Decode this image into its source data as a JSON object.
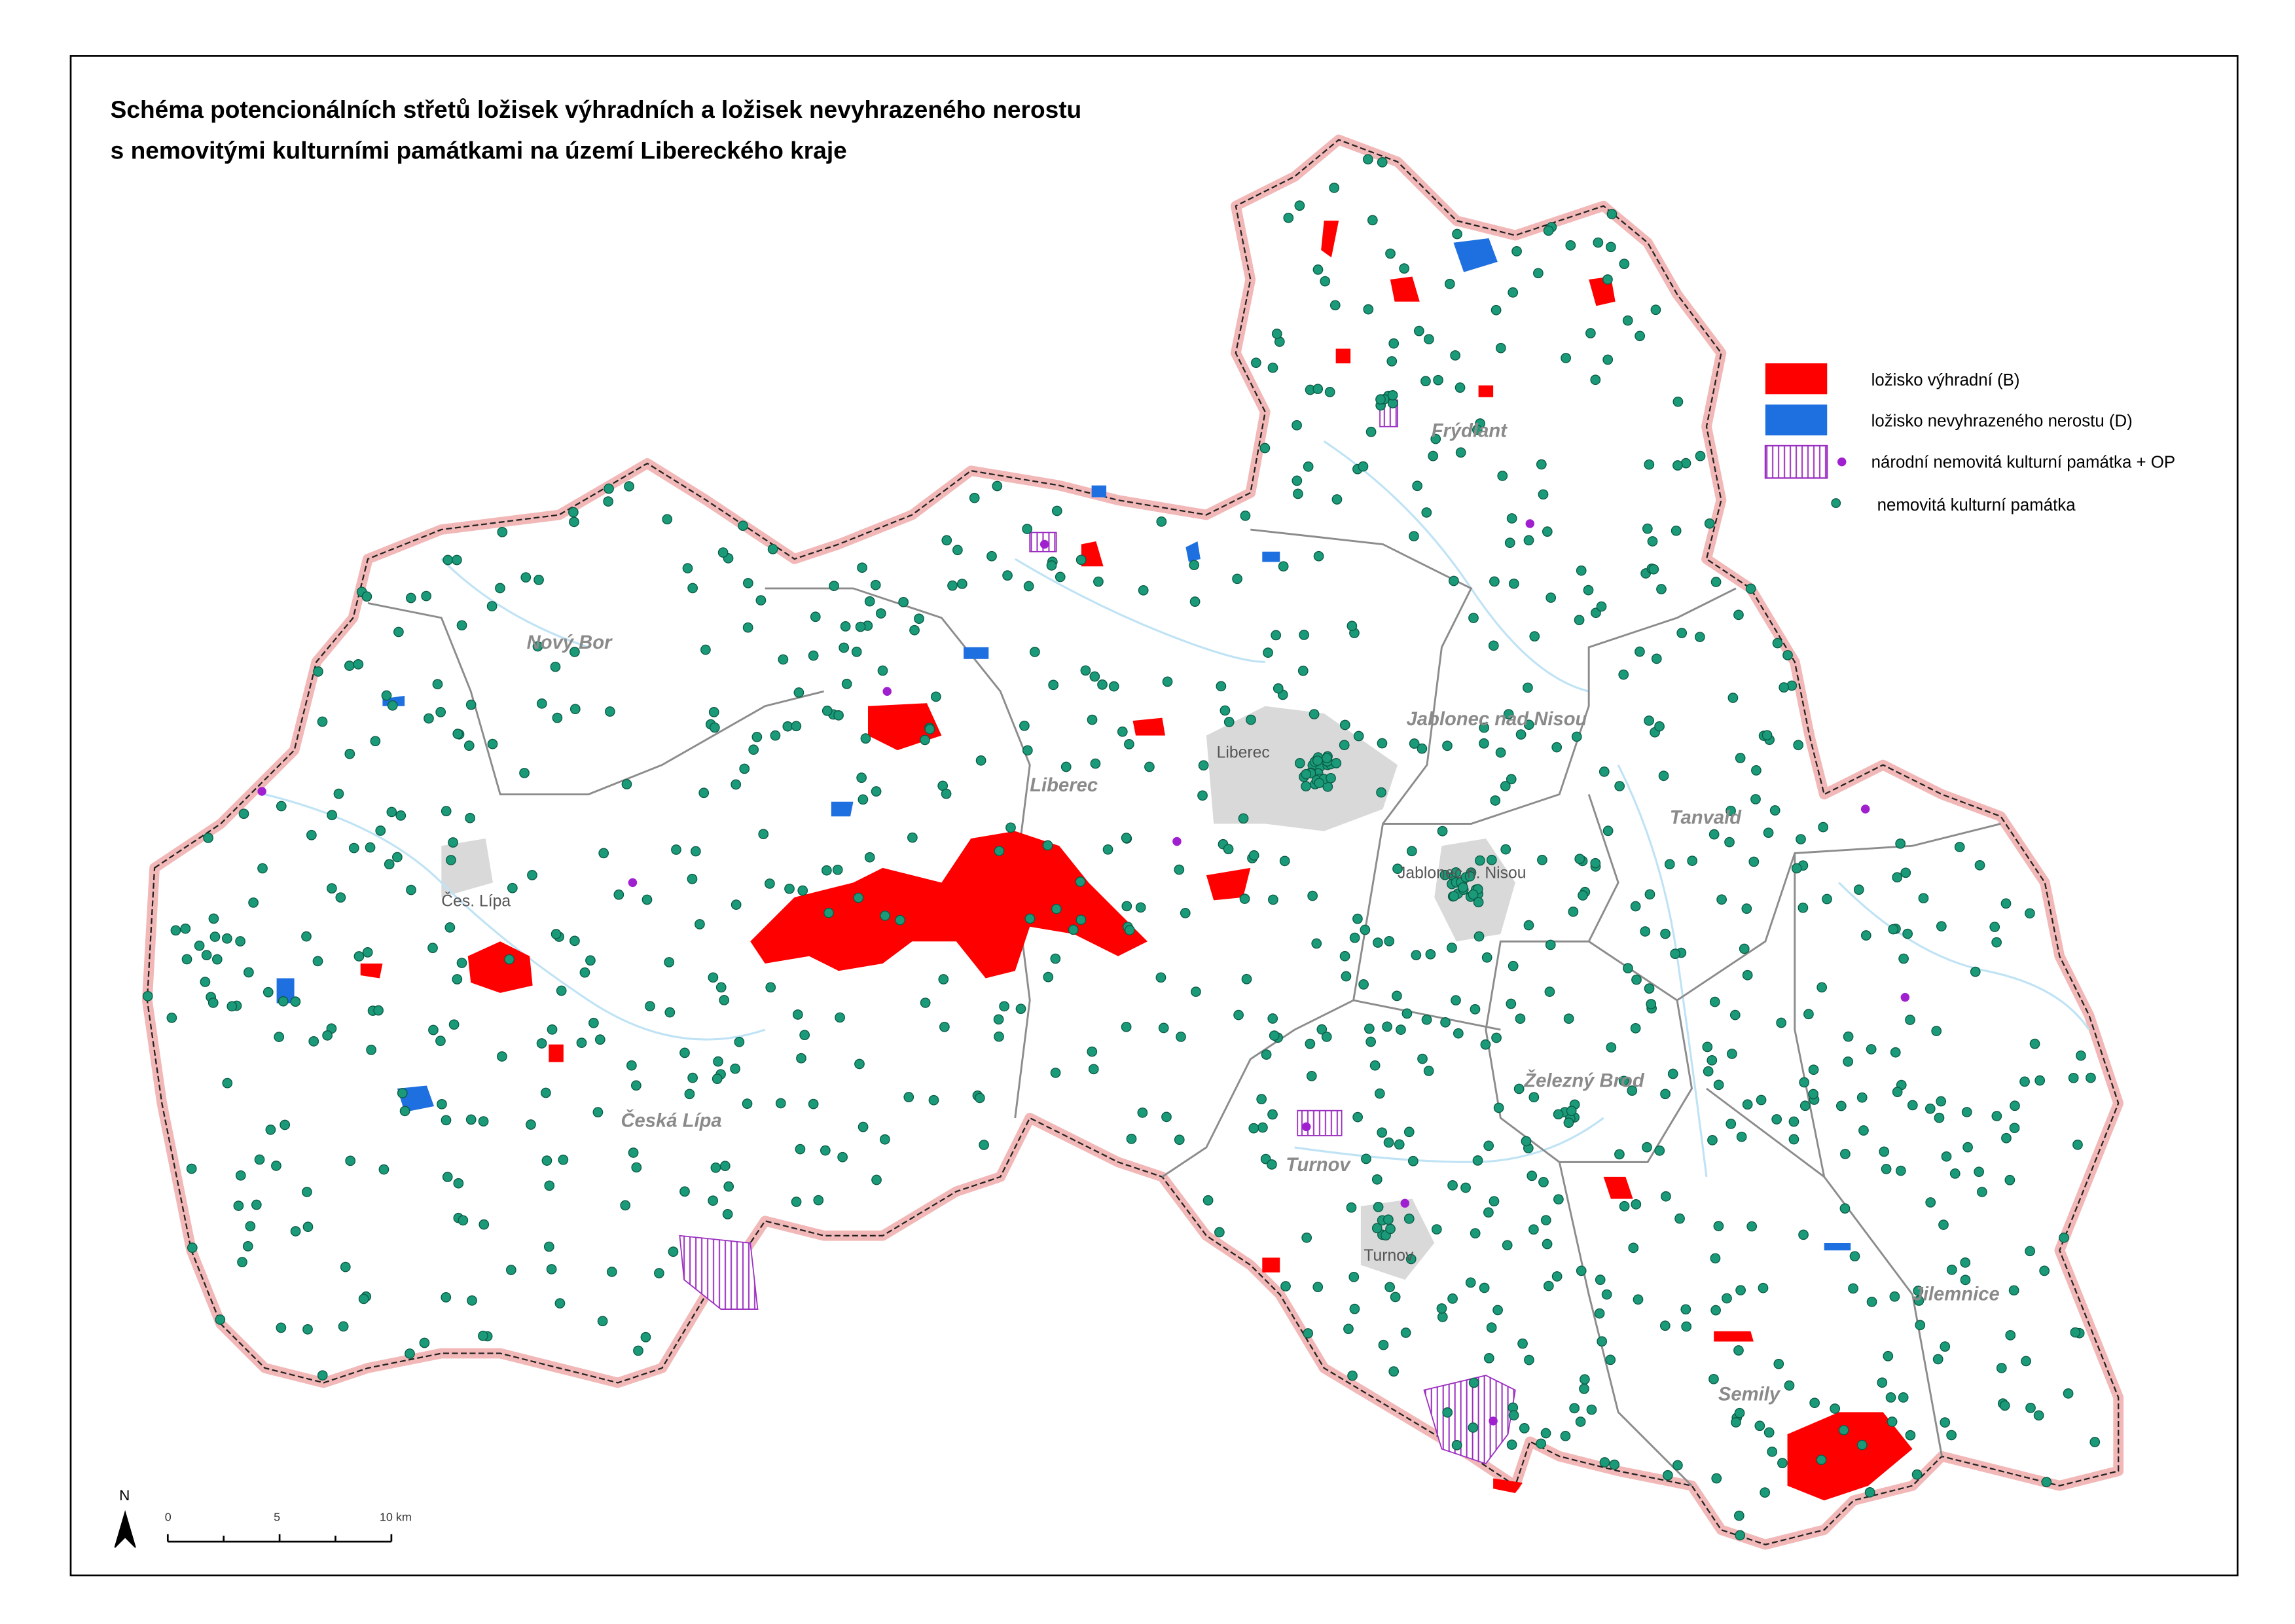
{
  "header": {
    "title_lines": [
      "Schéma potencionálních střetů ložisek výhradních a ložisek nevyhrazeného nerostu",
      "s nemovitými kulturními památkami na území Libereckého kraje"
    ]
  },
  "legend": {
    "items": [
      "ložisko výhradní (B)",
      "ložisko nevyhrazeného nerostu (D)",
      "národní nemovitá kulturní památka + OP",
      "nemovitá kulturní památka"
    ]
  },
  "places": [
    "Nový Bor",
    "Frýdlant",
    "Jablonec nad Nisou",
    "Liberec",
    "Liberec",
    "Tanvald",
    "Jablonec n. Nisou",
    "Čes. Lípa",
    "Železný Brod",
    "Česká Lípa",
    "Turnov",
    "Turnov",
    "Jilemnice",
    "Semily"
  ],
  "scale_bar": {
    "north": "N",
    "labels": [
      "0",
      "5",
      "10 km"
    ]
  }
}
